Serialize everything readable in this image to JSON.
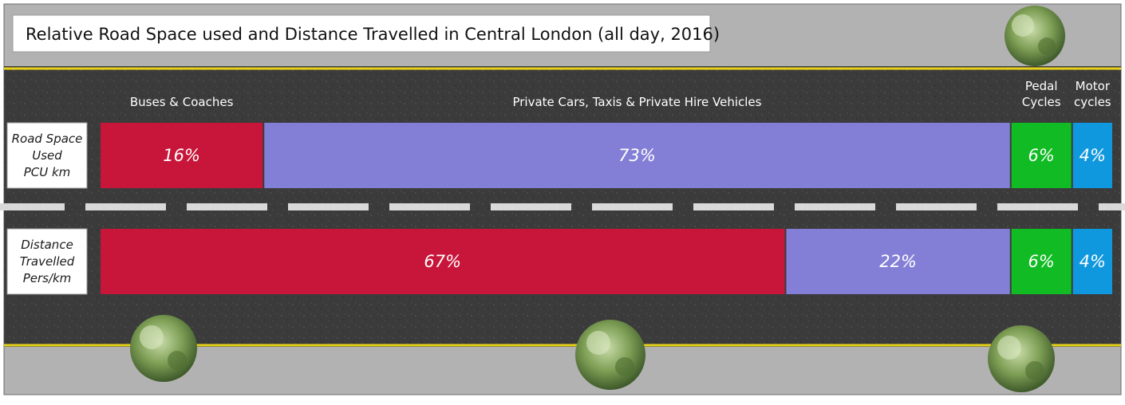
{
  "chart_data": {
    "type": "bar",
    "stacked": true,
    "orientation": "horizontal",
    "title": "Relative Road Space used and Distance Travelled in Central London (all day, 2016)",
    "rows": [
      {
        "label": [
          "Road Space",
          "Used",
          "PCU km"
        ],
        "values": [
          16,
          73,
          6,
          4
        ]
      },
      {
        "label": [
          "Distance",
          "Travelled",
          "Pers/km"
        ],
        "values": [
          67,
          22,
          6,
          4
        ]
      }
    ],
    "series": [
      {
        "name": [
          "Buses & Coaches"
        ],
        "color": "#c8163a"
      },
      {
        "name": [
          "Private Cars, Taxis & Private Hire Vehicles"
        ],
        "color": "#847fd6"
      },
      {
        "name": [
          "Pedal",
          "Cycles"
        ],
        "color": "#10bb23"
      },
      {
        "name": [
          "Motor",
          "cycles"
        ],
        "color": "#0f98de"
      }
    ],
    "value_suffix": "%"
  },
  "colors": {
    "road": "#3c3c3c",
    "pavement": "#b3b3b3",
    "edge_line": "#e8d21a",
    "lane_dash": "#d9d9d9"
  }
}
